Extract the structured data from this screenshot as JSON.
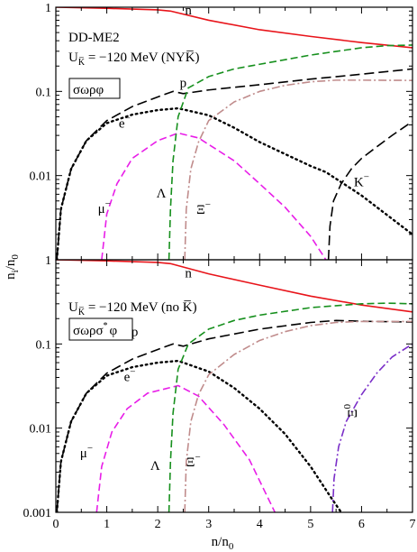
{
  "chart_data": [
    {
      "type": "line",
      "panel": "top",
      "xlim": [
        0,
        7
      ],
      "ylim": [
        0.001,
        1
      ],
      "yscale": "log",
      "x_ticks": [],
      "y_ticks": [
        "1",
        "0.1",
        "0.01"
      ],
      "annotations": {
        "model": "DD-ME2",
        "potential": "U",
        "potential_sub": "K̅",
        "potential_value": " = −120 MeV (NYK̅)",
        "box": "σωρφ"
      },
      "series": [
        {
          "name": "n",
          "color": "#e8141a",
          "dash": "solid",
          "x": [
            0,
            1,
            2,
            2.25,
            3,
            4,
            5,
            6,
            7
          ],
          "y": [
            1,
            0.97,
            0.93,
            0.9,
            0.7,
            0.54,
            0.45,
            0.38,
            0.33
          ]
        },
        {
          "name": "p",
          "color": "#000000",
          "dash": "longdash",
          "x": [
            0.02,
            0.1,
            0.3,
            0.6,
            1,
            1.5,
            2,
            2.3,
            2.5,
            3,
            4,
            5,
            6,
            7
          ],
          "y": [
            0.001,
            0.004,
            0.012,
            0.026,
            0.045,
            0.066,
            0.086,
            0.1,
            0.094,
            0.104,
            0.12,
            0.14,
            0.16,
            0.185
          ]
        },
        {
          "name": "e−",
          "color": "#000000",
          "dash": "dotted",
          "x": [
            0.02,
            0.1,
            0.3,
            0.6,
            1,
            1.5,
            2,
            2.4,
            3,
            3.5,
            4,
            4.5,
            5,
            5.3,
            6,
            7
          ],
          "y": [
            0.001,
            0.004,
            0.012,
            0.026,
            0.042,
            0.053,
            0.06,
            0.063,
            0.052,
            0.037,
            0.025,
            0.018,
            0.013,
            0.011,
            0.0058,
            0.002
          ]
        },
        {
          "name": "μ−",
          "color": "#e81ee8",
          "dash": "dash",
          "x": [
            0.9,
            1,
            1.2,
            1.5,
            2,
            2.4,
            2.8,
            3.5,
            4,
            4.5,
            5,
            5.3
          ],
          "y": [
            0.001,
            0.0035,
            0.008,
            0.016,
            0.026,
            0.032,
            0.028,
            0.015,
            0.008,
            0.0042,
            0.0019,
            0.001
          ]
        },
        {
          "name": "Λ",
          "color": "#17901e",
          "dash": "dash",
          "x": [
            2.22,
            2.25,
            2.3,
            2.4,
            2.6,
            3,
            3.5,
            4,
            5,
            6,
            6.5,
            7
          ],
          "y": [
            0.001,
            0.004,
            0.015,
            0.05,
            0.11,
            0.15,
            0.185,
            0.21,
            0.27,
            0.33,
            0.35,
            0.355
          ]
        },
        {
          "name": "Ξ−",
          "color": "#c08c8c",
          "dash": "dashdot",
          "x": [
            2.53,
            2.56,
            2.65,
            2.8,
            3,
            3.5,
            4,
            4.5,
            5,
            5.5,
            6,
            7
          ],
          "y": [
            0.001,
            0.004,
            0.012,
            0.025,
            0.045,
            0.075,
            0.1,
            0.118,
            0.13,
            0.136,
            0.136,
            0.135
          ]
        },
        {
          "name": "K−",
          "color": "#000000",
          "dash": "longdash",
          "x": [
            5.35,
            5.38,
            5.45,
            5.6,
            5.8,
            6,
            6.3,
            6.6,
            7
          ],
          "y": [
            0.001,
            0.0025,
            0.005,
            0.008,
            0.012,
            0.016,
            0.022,
            0.03,
            0.044
          ]
        }
      ],
      "labels": [
        {
          "text": "n",
          "x": 2.6,
          "y": 0.82
        },
        {
          "text": "p",
          "x": 2.5,
          "y": 0.112
        },
        {
          "text": "e",
          "sup": "−",
          "x": 1.35,
          "y": 0.037
        },
        {
          "text": "μ",
          "sup": "−",
          "x": 0.95,
          "y": 0.0036
        },
        {
          "text": "Λ",
          "x": 2.07,
          "y": 0.0055
        },
        {
          "text": "Ξ",
          "sup": "−",
          "x": 2.9,
          "y": 0.0035
        },
        {
          "text": "K",
          "sup": "−",
          "x": 6.0,
          "y": 0.0075
        }
      ]
    },
    {
      "type": "line",
      "panel": "bottom",
      "xlim": [
        0,
        7
      ],
      "ylim": [
        0.001,
        1
      ],
      "yscale": "log",
      "x_ticks": [
        "0",
        "1",
        "2",
        "3",
        "4",
        "5",
        "6",
        "7"
      ],
      "y_ticks": [
        "1",
        "0.1",
        "0.01",
        "0.001"
      ],
      "annotations": {
        "potential": "U",
        "potential_sub": "K̅",
        "potential_value": " = −120 MeV (no K̅)",
        "box": "σωρσ",
        "box_sup": "*",
        "box_tail": "φ"
      },
      "series": [
        {
          "name": "n",
          "color": "#e8141a",
          "dash": "solid",
          "x": [
            0,
            1,
            2,
            2.25,
            3,
            4,
            5,
            6,
            7
          ],
          "y": [
            1,
            0.97,
            0.93,
            0.9,
            0.68,
            0.5,
            0.37,
            0.29,
            0.24
          ]
        },
        {
          "name": "p",
          "color": "#000000",
          "dash": "longdash",
          "x": [
            0.02,
            0.1,
            0.3,
            0.6,
            1,
            1.5,
            2,
            2.3,
            2.5,
            3,
            4,
            5,
            5.5,
            6,
            7
          ],
          "y": [
            0.001,
            0.004,
            0.012,
            0.026,
            0.045,
            0.066,
            0.086,
            0.1,
            0.094,
            0.115,
            0.15,
            0.18,
            0.19,
            0.186,
            0.182
          ]
        },
        {
          "name": "e−",
          "color": "#000000",
          "dash": "dotted",
          "x": [
            0.02,
            0.1,
            0.3,
            0.6,
            1,
            1.5,
            2,
            2.4,
            3,
            3.5,
            4,
            4.5,
            5,
            5.4,
            5.6
          ],
          "y": [
            0.001,
            0.004,
            0.012,
            0.026,
            0.042,
            0.053,
            0.06,
            0.063,
            0.047,
            0.03,
            0.017,
            0.0085,
            0.0035,
            0.0015,
            0.001
          ]
        },
        {
          "name": "μ−",
          "color": "#e81ee8",
          "dash": "dash",
          "x": [
            0.8,
            0.9,
            1.1,
            1.4,
            1.8,
            2.4,
            2.8,
            3.3,
            3.8,
            4.3
          ],
          "y": [
            0.001,
            0.0035,
            0.009,
            0.017,
            0.026,
            0.032,
            0.024,
            0.011,
            0.0042,
            0.001
          ]
        },
        {
          "name": "Λ",
          "color": "#17901e",
          "dash": "dash",
          "x": [
            2.22,
            2.25,
            2.3,
            2.4,
            2.6,
            3,
            3.5,
            4,
            5,
            6,
            6.5,
            7
          ],
          "y": [
            0.001,
            0.004,
            0.015,
            0.05,
            0.1,
            0.15,
            0.19,
            0.22,
            0.27,
            0.3,
            0.305,
            0.3
          ]
        },
        {
          "name": "Ξ−",
          "color": "#c08c8c",
          "dash": "dashdot",
          "x": [
            2.53,
            2.56,
            2.65,
            2.8,
            3,
            3.5,
            4,
            4.5,
            5,
            5.5,
            6,
            7
          ],
          "y": [
            0.001,
            0.004,
            0.012,
            0.025,
            0.043,
            0.075,
            0.11,
            0.14,
            0.165,
            0.18,
            0.185,
            0.185
          ]
        },
        {
          "name": "Ξ0",
          "color": "#7a2ec8",
          "dash": "dashdot",
          "x": [
            5.43,
            5.46,
            5.55,
            5.7,
            6,
            6.3,
            6.6,
            7
          ],
          "y": [
            0.001,
            0.0025,
            0.006,
            0.012,
            0.025,
            0.045,
            0.07,
            0.1
          ]
        }
      ],
      "labels": [
        {
          "text": "n",
          "x": 2.6,
          "y": 0.62
        },
        {
          "text": "p",
          "x": 1.55,
          "y": 0.125
        },
        {
          "text": "e",
          "sup": "−",
          "x": 1.45,
          "y": 0.036
        },
        {
          "text": "μ",
          "sup": "−",
          "x": 0.6,
          "y": 0.0045
        },
        {
          "text": "Λ",
          "x": 1.95,
          "y": 0.0032
        },
        {
          "text": "Ξ",
          "sup": "−",
          "x": 2.7,
          "y": 0.0035
        },
        {
          "text": "Ξ",
          "sup": "0",
          "x": 5.9,
          "y": 0.016,
          "rotate": -90
        }
      ]
    }
  ],
  "axes": {
    "xlabel_main": "n/n",
    "xlabel_sub": "0",
    "ylabel_main": "n",
    "ylabel_sub": "i",
    "ylabel_mid": "/n",
    "ylabel_sub2": "0"
  }
}
